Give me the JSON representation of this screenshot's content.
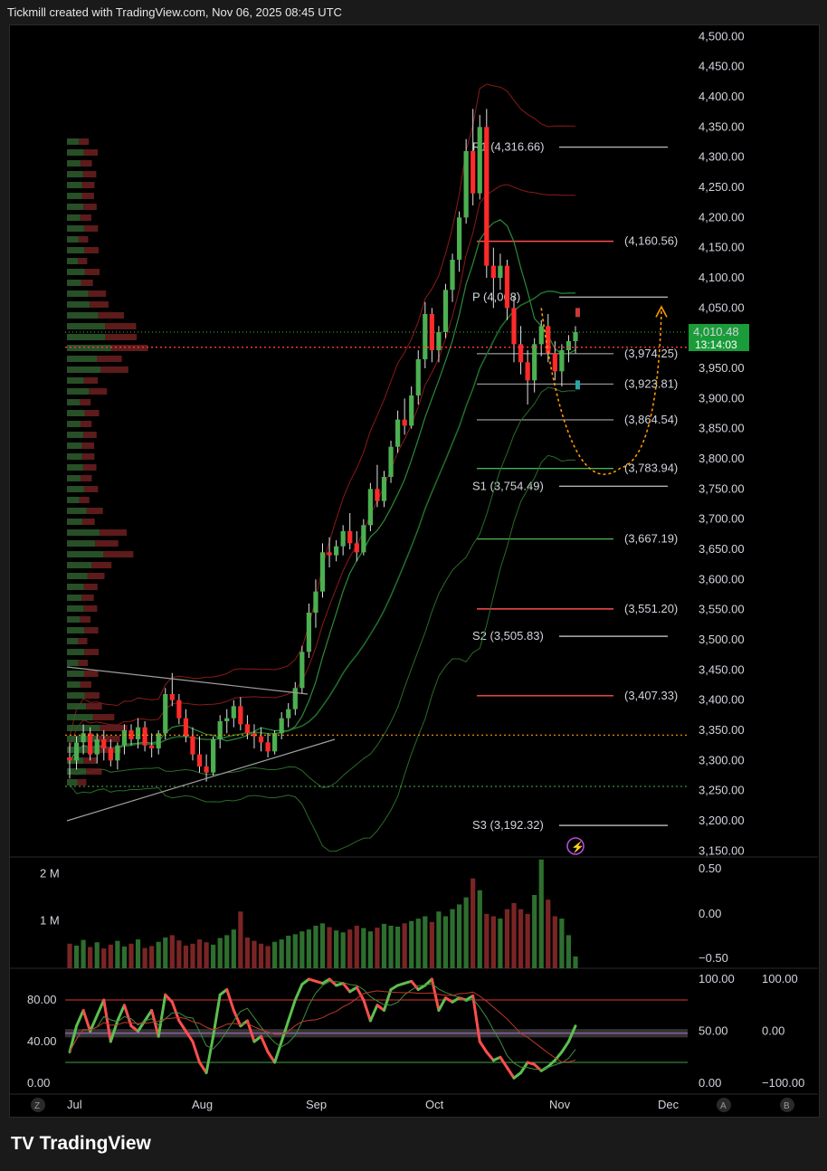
{
  "header": {
    "attribution": "Tickmill created with TradingView.com, Nov 06, 2025 08:45 UTC"
  },
  "brand": {
    "logo_icon": "tradingview-logo-icon",
    "name": "TradingView"
  },
  "colors": {
    "up": "#4caf50",
    "down": "#ff2a2a",
    "bg": "#000000",
    "orange": "#ff9800",
    "price_tag": "#1b9c3a"
  },
  "chart_data": {
    "type": "candlestick",
    "instrument_price": {
      "last": "4,010.48",
      "countdown": "13:14:03"
    },
    "price_axis": {
      "ylim": [
        3140,
        4520
      ],
      "ticks": [
        "4,500.00",
        "4,450.00",
        "4,400.00",
        "4,350.00",
        "4,300.00",
        "4,250.00",
        "4,200.00",
        "4,150.00",
        "4,100.00",
        "4,050.00",
        "4,000.00",
        "3,950.00",
        "3,900.00",
        "3,850.00",
        "3,800.00",
        "3,750.00",
        "3,700.00",
        "3,650.00",
        "3,600.00",
        "3,550.00",
        "3,500.00",
        "3,450.00",
        "3,400.00",
        "3,350.00",
        "3,300.00",
        "3,250.00",
        "3,200.00",
        "3,150.00"
      ],
      "tick_values": [
        4500,
        4450,
        4400,
        4350,
        4300,
        4250,
        4200,
        4150,
        4100,
        4050,
        4000,
        3950,
        3900,
        3850,
        3800,
        3750,
        3700,
        3650,
        3600,
        3550,
        3500,
        3450,
        3400,
        3350,
        3300,
        3250,
        3200,
        3150
      ]
    },
    "x_axis": {
      "labels": [
        "Jul",
        "Aug",
        "Sep",
        "Oct",
        "Nov",
        "Dec"
      ]
    },
    "candles": [
      [
        3305,
        3330,
        3270,
        3300
      ],
      [
        3300,
        3340,
        3285,
        3330
      ],
      [
        3330,
        3360,
        3310,
        3345
      ],
      [
        3345,
        3355,
        3300,
        3310
      ],
      [
        3310,
        3345,
        3295,
        3335
      ],
      [
        3335,
        3350,
        3300,
        3320
      ],
      [
        3320,
        3335,
        3290,
        3300
      ],
      [
        3300,
        3330,
        3285,
        3325
      ],
      [
        3325,
        3360,
        3310,
        3350
      ],
      [
        3350,
        3360,
        3325,
        3335
      ],
      [
        3335,
        3370,
        3320,
        3355
      ],
      [
        3355,
        3365,
        3315,
        3325
      ],
      [
        3325,
        3345,
        3305,
        3320
      ],
      [
        3320,
        3350,
        3310,
        3345
      ],
      [
        3345,
        3420,
        3335,
        3410
      ],
      [
        3410,
        3445,
        3390,
        3400
      ],
      [
        3400,
        3410,
        3360,
        3370
      ],
      [
        3370,
        3385,
        3330,
        3340
      ],
      [
        3340,
        3355,
        3300,
        3310
      ],
      [
        3310,
        3340,
        3280,
        3290
      ],
      [
        3290,
        3310,
        3265,
        3280
      ],
      [
        3280,
        3340,
        3275,
        3335
      ],
      [
        3335,
        3375,
        3320,
        3365
      ],
      [
        3365,
        3385,
        3345,
        3370
      ],
      [
        3370,
        3400,
        3355,
        3390
      ],
      [
        3390,
        3405,
        3350,
        3360
      ],
      [
        3360,
        3375,
        3335,
        3345
      ],
      [
        3345,
        3360,
        3320,
        3340
      ],
      [
        3340,
        3355,
        3315,
        3330
      ],
      [
        3330,
        3345,
        3305,
        3315
      ],
      [
        3315,
        3350,
        3310,
        3345
      ],
      [
        3345,
        3380,
        3335,
        3370
      ],
      [
        3370,
        3395,
        3355,
        3385
      ],
      [
        3385,
        3430,
        3375,
        3420
      ],
      [
        3420,
        3490,
        3410,
        3480
      ],
      [
        3480,
        3560,
        3470,
        3545
      ],
      [
        3545,
        3600,
        3520,
        3580
      ],
      [
        3580,
        3660,
        3570,
        3645
      ],
      [
        3645,
        3670,
        3620,
        3640
      ],
      [
        3640,
        3665,
        3630,
        3655
      ],
      [
        3655,
        3690,
        3640,
        3680
      ],
      [
        3680,
        3710,
        3650,
        3660
      ],
      [
        3660,
        3680,
        3630,
        3645
      ],
      [
        3645,
        3700,
        3640,
        3690
      ],
      [
        3690,
        3760,
        3680,
        3750
      ],
      [
        3750,
        3790,
        3720,
        3730
      ],
      [
        3730,
        3780,
        3720,
        3770
      ],
      [
        3770,
        3830,
        3760,
        3820
      ],
      [
        3820,
        3880,
        3810,
        3865
      ],
      [
        3865,
        3900,
        3840,
        3855
      ],
      [
        3855,
        3920,
        3850,
        3905
      ],
      [
        3905,
        3980,
        3890,
        3965
      ],
      [
        3965,
        4060,
        3950,
        4040
      ],
      [
        4040,
        4050,
        3960,
        3980
      ],
      [
        3980,
        4020,
        3960,
        4010
      ],
      [
        4010,
        4090,
        4000,
        4080
      ],
      [
        4080,
        4140,
        4060,
        4130
      ],
      [
        4130,
        4210,
        4110,
        4200
      ],
      [
        4200,
        4330,
        4190,
        4310
      ],
      [
        4310,
        4380,
        4220,
        4240
      ],
      [
        4240,
        4370,
        4230,
        4350
      ],
      [
        4350,
        4380,
        4100,
        4120
      ],
      [
        4120,
        4150,
        4050,
        4100
      ],
      [
        4100,
        4140,
        4080,
        4120
      ],
      [
        4120,
        4130,
        4030,
        4050
      ],
      [
        4050,
        4070,
        3960,
        3990
      ],
      [
        3990,
        4020,
        3940,
        3960
      ],
      [
        3960,
        3980,
        3890,
        3930
      ],
      [
        3930,
        4000,
        3910,
        3990
      ],
      [
        3990,
        4030,
        3970,
        4020
      ],
      [
        4020,
        4040,
        3960,
        3975
      ],
      [
        3975,
        3995,
        3930,
        3945
      ],
      [
        3945,
        3990,
        3920,
        3980
      ],
      [
        3980,
        4005,
        3960,
        3995
      ],
      [
        3995,
        4020,
        3975,
        4010
      ]
    ],
    "horizontal_levels": [
      {
        "label": "R1 (4,316.66)",
        "value": 4316.66,
        "color": "#b0b0b0"
      },
      {
        "label": "(4,160.56)",
        "value": 4160.56,
        "color": "#ff4d4d"
      },
      {
        "label": "P (4,068)",
        "value": 4068,
        "color": "#b0b0b0"
      },
      {
        "label": "(3,974.25)",
        "value": 3974.25,
        "color": "#8a8a8a"
      },
      {
        "label": "(3,923.81)",
        "value": 3923.81,
        "color": "#8a8a8a"
      },
      {
        "label": "(3,864.54)",
        "value": 3864.54,
        "color": "#8a8a8a"
      },
      {
        "label": "(3,783.94)",
        "value": 3783.94,
        "color": "#4caf50"
      },
      {
        "label": "S1 (3,754.49)",
        "value": 3754.49,
        "color": "#b0b0b0"
      },
      {
        "label": "(3,667.19)",
        "value": 3667.19,
        "color": "#4caf50"
      },
      {
        "label": "(3,551.20)",
        "value": 3551.2,
        "color": "#ff4d4d"
      },
      {
        "label": "S2 (3,505.83)",
        "value": 3505.83,
        "color": "#b0b0b0"
      },
      {
        "label": "(3,407.33)",
        "value": 3407.33,
        "color": "#ff4d4d"
      },
      {
        "label": "S3 (3,192.32)",
        "value": 3192.32,
        "color": "#b0b0b0"
      }
    ],
    "volume_axis": {
      "left_ticks": [
        "2 M",
        "1 M"
      ],
      "right_ticks": [
        "0.50",
        "0.00",
        "−0.50"
      ],
      "max": 2200000
    },
    "volume": [
      520000,
      480000,
      600000,
      450000,
      550000,
      420000,
      500000,
      580000,
      460000,
      520000,
      610000,
      430000,
      470000,
      560000,
      650000,
      700000,
      590000,
      480000,
      520000,
      610000,
      550000,
      500000,
      640000,
      700000,
      820000,
      1200000,
      650000,
      580000,
      520000,
      470000,
      560000,
      610000,
      690000,
      720000,
      780000,
      820000,
      900000,
      950000,
      870000,
      800000,
      760000,
      820000,
      900000,
      850000,
      780000,
      860000,
      940000,
      900000,
      880000,
      950000,
      1000000,
      1050000,
      1100000,
      980000,
      1200000,
      1100000,
      1250000,
      1350000,
      1500000,
      1900000,
      1650000,
      1150000,
      1100000,
      1050000,
      1250000,
      1380000,
      1250000,
      1150000,
      1550000,
      2300000,
      1450000,
      1100000,
      1050000,
      700000,
      250000
    ],
    "oscillator_axis": {
      "left_ticks": [
        "80.00",
        "40.00",
        "0.00"
      ],
      "right1_ticks": [
        "100.00",
        "50.00",
        "0.00"
      ],
      "right2_ticks": [
        "100.00",
        "0.00",
        "−100.00"
      ],
      "upper_band": 80,
      "lower_band": 20
    },
    "oscillator": [
      30,
      55,
      70,
      50,
      65,
      80,
      40,
      60,
      75,
      55,
      50,
      60,
      70,
      45,
      85,
      78,
      60,
      50,
      40,
      20,
      10,
      45,
      85,
      90,
      70,
      55,
      60,
      40,
      45,
      30,
      20,
      40,
      60,
      80,
      95,
      100,
      98,
      96,
      100,
      94,
      96,
      88,
      92,
      80,
      60,
      75,
      70,
      90,
      94,
      96,
      98,
      90,
      94,
      100,
      70,
      82,
      78,
      82,
      80,
      84,
      40,
      30,
      22,
      25,
      15,
      5,
      10,
      20,
      18,
      12,
      16,
      22,
      30,
      40,
      55
    ]
  }
}
